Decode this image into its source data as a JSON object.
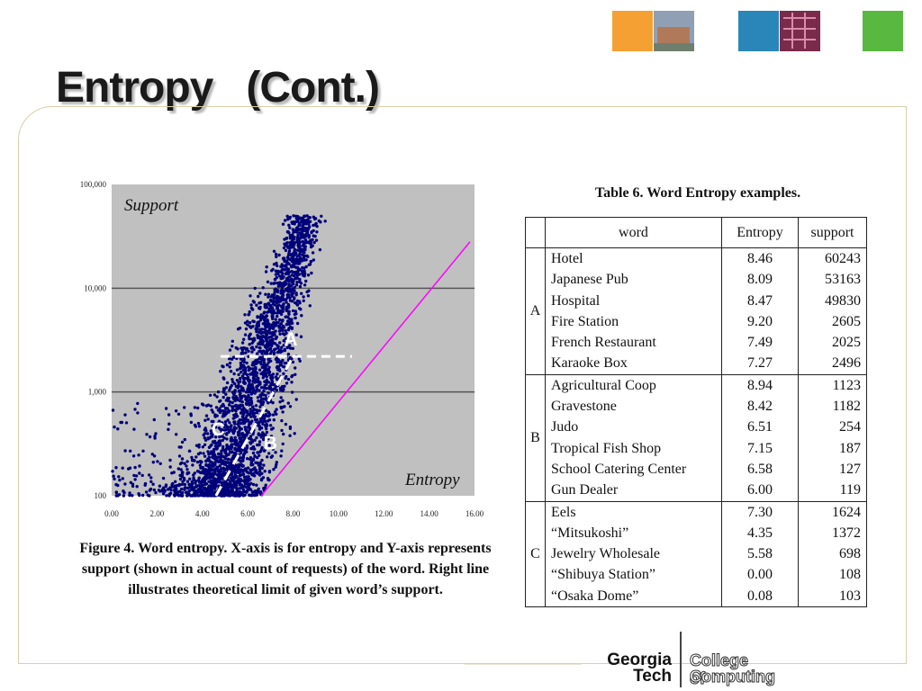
{
  "slide": {
    "title": "Entropy   (Cont.)"
  },
  "figure": {
    "caption": "Figure 4. Word entropy. X-axis is for entropy and Y-axis represents support (shown in actual count of requests) of the word. Right line illustrates theoretical limit of given word’s support."
  },
  "chart_data": {
    "type": "scatter",
    "xlabel": "Entropy",
    "ylabel": "Support",
    "xlim": [
      0,
      16
    ],
    "ylim": [
      100,
      100000
    ],
    "yscale": "log",
    "x_ticks": [
      "0.00",
      "2.00",
      "4.00",
      "6.00",
      "8.00",
      "10.00",
      "12.00",
      "14.00",
      "16.00"
    ],
    "y_ticks": [
      "100",
      "1,000",
      "10,000",
      "100,000"
    ],
    "gridlines": [
      1000,
      10000
    ],
    "region_labels": [
      "A",
      "B",
      "C"
    ],
    "colors": {
      "points": "#00007a",
      "limit_line": "#ff00ff",
      "background": "#c0c0c0",
      "dashed": "#ffffff"
    }
  },
  "table": {
    "caption": "Table 6. Word Entropy examples.",
    "headers": [
      "word",
      "Entropy",
      "support"
    ],
    "groups": [
      {
        "label": "A",
        "rows": [
          [
            "Hotel",
            "8.46",
            "60243"
          ],
          [
            "Japanese Pub",
            "8.09",
            "53163"
          ],
          [
            "Hospital",
            "8.47",
            "49830"
          ],
          [
            "Fire Station",
            "9.20",
            "2605"
          ],
          [
            "French Restaurant",
            "7.49",
            "2025"
          ],
          [
            "Karaoke Box",
            "7.27",
            "2496"
          ]
        ]
      },
      {
        "label": "B",
        "rows": [
          [
            "Agricultural Coop",
            "8.94",
            "1123"
          ],
          [
            "Gravestone",
            "8.42",
            "1182"
          ],
          [
            "Judo",
            "6.51",
            "254"
          ],
          [
            "Tropical Fish Shop",
            "7.15",
            "187"
          ],
          [
            "School Catering Center",
            "6.58",
            "127"
          ],
          [
            "Gun Dealer",
            "6.00",
            "119"
          ]
        ]
      },
      {
        "label": "C",
        "rows": [
          [
            "Eels",
            "7.30",
            "1624"
          ],
          [
            "“Mitsukoshi”",
            "4.35",
            "1372"
          ],
          [
            "Jewelry Wholesale",
            "5.58",
            "698"
          ],
          [
            "“Shibuya Station”",
            "0.00",
            "108"
          ],
          [
            "“Osaka Dome”",
            "0.08",
            "103"
          ]
        ]
      }
    ]
  },
  "logo": {
    "line1": "Georgia",
    "line2": "Tech",
    "line3": "College of",
    "line4": "Computing"
  }
}
